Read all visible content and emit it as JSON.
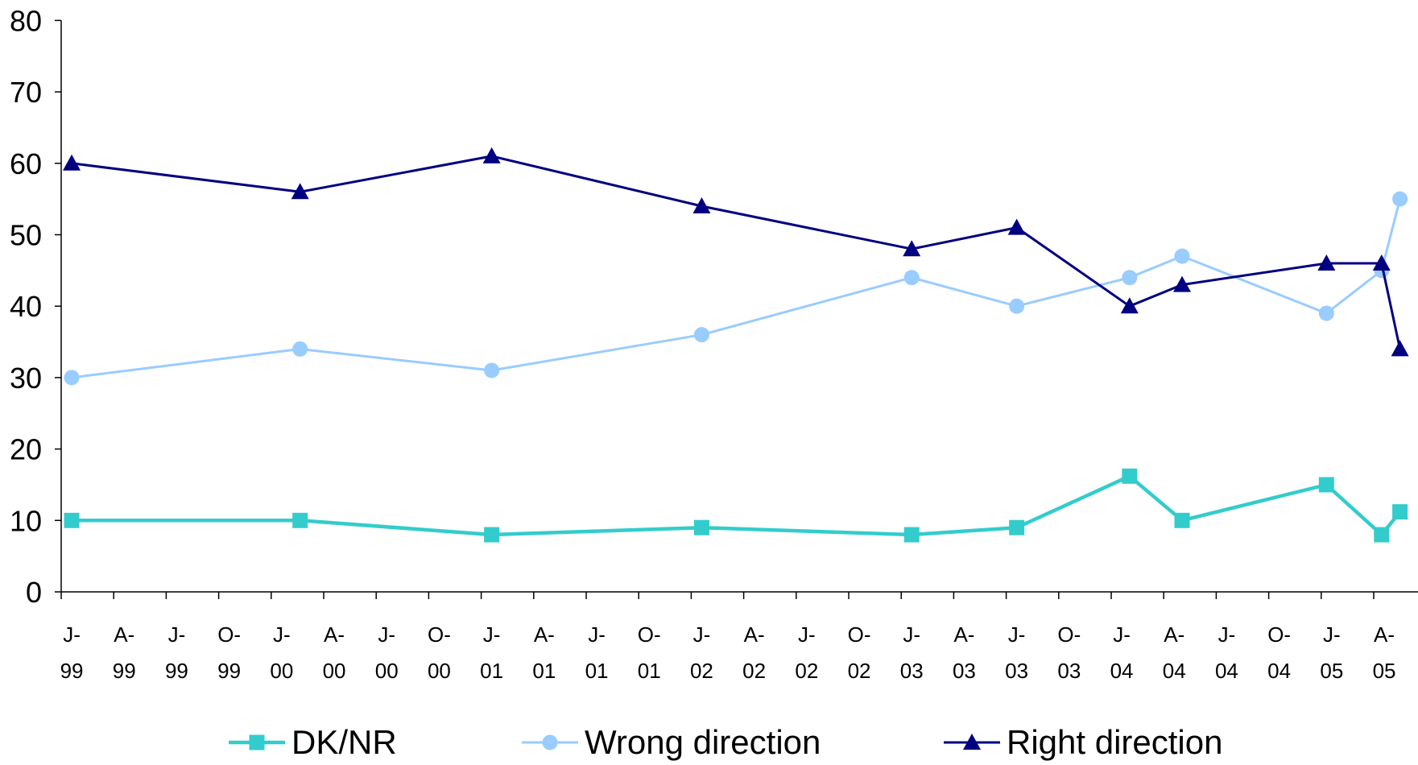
{
  "chart_data": {
    "type": "line",
    "title": "",
    "xlabel": "",
    "ylabel": "",
    "ylim": [
      0,
      80
    ],
    "yticks": [
      0,
      10,
      20,
      30,
      40,
      50,
      60,
      70,
      80
    ],
    "grid": false,
    "legend_position": "bottom",
    "x_tick_labels": [
      [
        "J-",
        "99"
      ],
      [
        "A-",
        "99"
      ],
      [
        "J-",
        "99"
      ],
      [
        "O-",
        "99"
      ],
      [
        "J-",
        "00"
      ],
      [
        "A-",
        "00"
      ],
      [
        "J-",
        "00"
      ],
      [
        "O-",
        "00"
      ],
      [
        "J-",
        "01"
      ],
      [
        "A-",
        "01"
      ],
      [
        "J-",
        "01"
      ],
      [
        "O-",
        "01"
      ],
      [
        "J-",
        "02"
      ],
      [
        "A-",
        "02"
      ],
      [
        "J-",
        "02"
      ],
      [
        "O-",
        "02"
      ],
      [
        "J-",
        "03"
      ],
      [
        "A-",
        "03"
      ],
      [
        "J-",
        "03"
      ],
      [
        "O-",
        "03"
      ],
      [
        "J-",
        "04"
      ],
      [
        "A-",
        "04"
      ],
      [
        "J-",
        "04"
      ],
      [
        "O-",
        "04"
      ],
      [
        "J-",
        "05"
      ],
      [
        "A-",
        "05"
      ]
    ],
    "series": [
      {
        "name": "DK/NR",
        "color": "#33CCCC",
        "marker": "square",
        "points": [
          {
            "x": 0.2,
            "y": 10
          },
          {
            "x": 4.55,
            "y": 10
          },
          {
            "x": 8.2,
            "y": 8
          },
          {
            "x": 12.2,
            "y": 9
          },
          {
            "x": 16.2,
            "y": 8
          },
          {
            "x": 18.2,
            "y": 9
          },
          {
            "x": 20.35,
            "y": 16.2
          },
          {
            "x": 21.35,
            "y": 10
          },
          {
            "x": 24.1,
            "y": 15
          },
          {
            "x": 25.15,
            "y": 8
          },
          {
            "x": 25.5,
            "y": 11.2
          }
        ]
      },
      {
        "name": "Wrong direction",
        "color": "#99CCFF",
        "marker": "circle",
        "points": [
          {
            "x": 0.2,
            "y": 30
          },
          {
            "x": 4.55,
            "y": 34
          },
          {
            "x": 8.2,
            "y": 31
          },
          {
            "x": 12.2,
            "y": 36
          },
          {
            "x": 16.2,
            "y": 44
          },
          {
            "x": 18.2,
            "y": 40
          },
          {
            "x": 20.35,
            "y": 44
          },
          {
            "x": 21.35,
            "y": 47
          },
          {
            "x": 24.1,
            "y": 39
          },
          {
            "x": 25.15,
            "y": 45
          },
          {
            "x": 25.5,
            "y": 55
          }
        ]
      },
      {
        "name": "Right direction",
        "color": "#000080",
        "marker": "triangle",
        "points": [
          {
            "x": 0.2,
            "y": 60
          },
          {
            "x": 4.55,
            "y": 56
          },
          {
            "x": 8.2,
            "y": 61
          },
          {
            "x": 12.2,
            "y": 54
          },
          {
            "x": 16.2,
            "y": 48
          },
          {
            "x": 18.2,
            "y": 51
          },
          {
            "x": 20.35,
            "y": 40
          },
          {
            "x": 21.35,
            "y": 43
          },
          {
            "x": 24.1,
            "y": 46
          },
          {
            "x": 25.15,
            "y": 46
          },
          {
            "x": 25.5,
            "y": 34
          }
        ]
      }
    ]
  }
}
